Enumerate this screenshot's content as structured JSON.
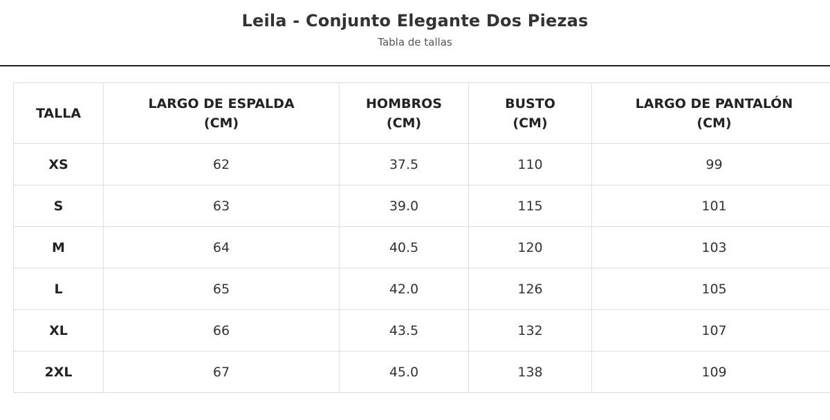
{
  "header": {
    "title": "Leila - Conjunto Elegante Dos Piezas",
    "subtitle": "Tabla de tallas"
  },
  "table": {
    "columns": [
      {
        "line1": "TALLA",
        "line2": ""
      },
      {
        "line1": "LARGO DE ESPALDA",
        "line2": "(CM)"
      },
      {
        "line1": "HOMBROS",
        "line2": "(CM)"
      },
      {
        "line1": "BUSTO",
        "line2": "(CM)"
      },
      {
        "line1": "LARGO DE PANTALÓN",
        "line2": "(CM)"
      }
    ],
    "rows": [
      [
        "XS",
        "62",
        "37.5",
        "110",
        "99"
      ],
      [
        "S",
        "63",
        "39.0",
        "115",
        "101"
      ],
      [
        "M",
        "64",
        "40.5",
        "120",
        "103"
      ],
      [
        "L",
        "65",
        "42.0",
        "126",
        "105"
      ],
      [
        "XL",
        "66",
        "43.5",
        "132",
        "107"
      ],
      [
        "2XL",
        "67",
        "45.0",
        "138",
        "109"
      ]
    ]
  }
}
